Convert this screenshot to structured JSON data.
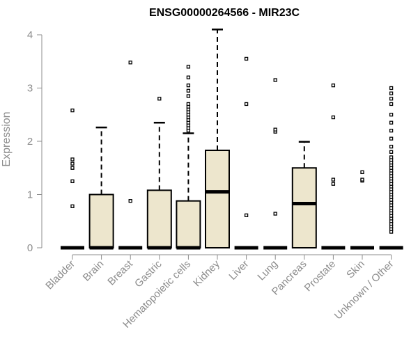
{
  "chart_data": {
    "type": "box",
    "title": "ENSG00000264566 - MIR23C",
    "ylabel": "Expression",
    "xlabel": "",
    "ylim": [
      0,
      4.1
    ],
    "yticks": [
      0,
      1,
      2,
      3,
      4
    ],
    "box_fill": "#ede6cd",
    "categories": [
      "Bladder",
      "Brain",
      "Breast",
      "Gastric",
      "Hematopoietic cells",
      "Kidney",
      "Liver",
      "Lung",
      "Pancreas",
      "Prostate",
      "Skin",
      "Unknown / Other"
    ],
    "boxes": [
      {
        "q1": 0,
        "median": 0,
        "q3": 0,
        "whisker_low": 0,
        "whisker_high": 0,
        "outliers": [
          0.78,
          1.25,
          1.5,
          1.58,
          1.66,
          2.58
        ]
      },
      {
        "q1": 0,
        "median": 0,
        "q3": 1.0,
        "whisker_low": 0,
        "whisker_high": 2.26,
        "outliers": []
      },
      {
        "q1": 0,
        "median": 0,
        "q3": 0,
        "whisker_low": 0,
        "whisker_high": 0,
        "outliers": [
          0.88,
          3.48
        ]
      },
      {
        "q1": 0,
        "median": 0,
        "q3": 1.08,
        "whisker_low": 0,
        "whisker_high": 2.35,
        "outliers": [
          2.8
        ]
      },
      {
        "q1": 0,
        "median": 0,
        "q3": 0.88,
        "whisker_low": 0,
        "whisker_high": 2.15,
        "outliers": [
          2.2,
          2.25,
          2.3,
          2.35,
          2.4,
          2.45,
          2.5,
          2.55,
          2.6,
          2.65,
          2.7,
          2.85,
          2.95,
          3.05,
          3.2,
          3.4
        ]
      },
      {
        "q1": 0,
        "median": 1.05,
        "q3": 1.83,
        "whisker_low": 0,
        "whisker_high": 4.1,
        "outliers": []
      },
      {
        "q1": 0,
        "median": 0,
        "q3": 0,
        "whisker_low": 0,
        "whisker_high": 0,
        "outliers": [
          0.61,
          2.7,
          3.55
        ]
      },
      {
        "q1": 0,
        "median": 0,
        "q3": 0,
        "whisker_low": 0,
        "whisker_high": 0,
        "outliers": [
          0.64,
          2.18,
          2.22,
          3.15
        ]
      },
      {
        "q1": 0,
        "median": 0.83,
        "q3": 1.5,
        "whisker_low": 0,
        "whisker_high": 1.99,
        "outliers": []
      },
      {
        "q1": 0,
        "median": 0,
        "q3": 0,
        "whisker_low": 0,
        "whisker_high": 0,
        "outliers": [
          1.2,
          1.28,
          2.45,
          3.05
        ]
      },
      {
        "q1": 0,
        "median": 0,
        "q3": 0,
        "whisker_low": 0,
        "whisker_high": 0,
        "outliers": [
          1.26,
          1.28,
          1.42
        ]
      },
      {
        "q1": 0,
        "median": 0,
        "q3": 0,
        "whisker_low": 0,
        "whisker_high": 0,
        "outliers": [
          0.3,
          0.35,
          0.4,
          0.45,
          0.5,
          0.55,
          0.6,
          0.65,
          0.7,
          0.75,
          0.8,
          0.85,
          0.9,
          0.95,
          1.0,
          1.05,
          1.1,
          1.15,
          1.2,
          1.25,
          1.3,
          1.35,
          1.4,
          1.45,
          1.5,
          1.55,
          1.6,
          1.65,
          1.7,
          1.8,
          1.9,
          2.05,
          2.2,
          2.35,
          2.5,
          2.7,
          2.8,
          2.9,
          3.0
        ]
      }
    ]
  }
}
